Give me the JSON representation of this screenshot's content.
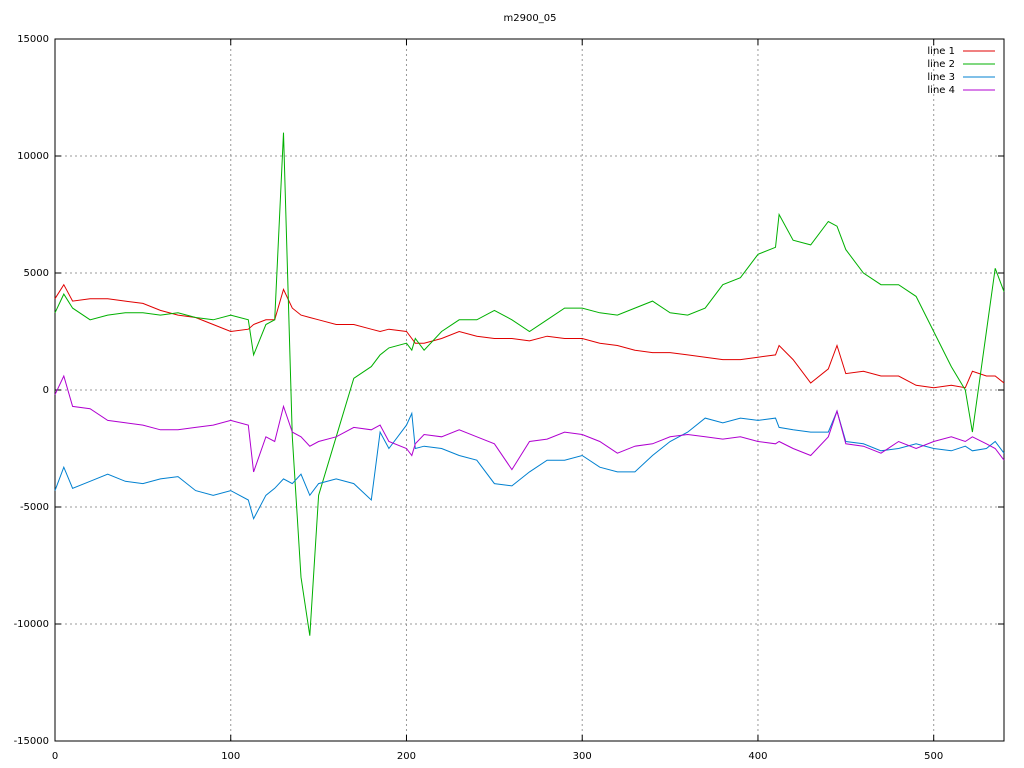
{
  "chart_data": {
    "type": "line",
    "title": "m2900_05",
    "x": [
      0,
      5,
      10,
      20,
      30,
      40,
      50,
      60,
      70,
      80,
      90,
      100,
      110,
      113,
      120,
      125,
      130,
      135,
      140,
      145,
      150,
      160,
      170,
      180,
      185,
      190,
      200,
      203,
      205,
      210,
      220,
      230,
      240,
      250,
      260,
      270,
      280,
      290,
      300,
      310,
      320,
      330,
      340,
      350,
      360,
      370,
      380,
      390,
      400,
      410,
      412,
      420,
      430,
      440,
      445,
      450,
      460,
      470,
      480,
      490,
      500,
      510,
      518,
      522,
      530,
      535,
      540
    ],
    "series": [
      {
        "name": "line 1",
        "color": "#e00000",
        "values": [
          3900,
          4500,
          3800,
          3900,
          3900,
          3800,
          3700,
          3400,
          3200,
          3100,
          2800,
          2500,
          2600,
          2800,
          3000,
          3000,
          4300,
          3500,
          3200,
          3100,
          3000,
          2800,
          2800,
          2600,
          2500,
          2600,
          2500,
          2200,
          2000,
          2000,
          2200,
          2500,
          2300,
          2200,
          2200,
          2100,
          2300,
          2200,
          2200,
          2000,
          1900,
          1700,
          1600,
          1600,
          1500,
          1400,
          1300,
          1300,
          1400,
          1500,
          1900,
          1300,
          300,
          900,
          1900,
          700,
          800,
          600,
          600,
          200,
          100,
          200,
          100,
          800,
          600,
          600,
          300
        ]
      },
      {
        "name": "line 2",
        "color": "#00b000",
        "values": [
          3300,
          4100,
          3500,
          3000,
          3200,
          3300,
          3300,
          3200,
          3300,
          3100,
          3000,
          3200,
          3000,
          1500,
          2800,
          3000,
          11000,
          -2000,
          -8000,
          -10500,
          -4500,
          -2000,
          500,
          1000,
          1500,
          1800,
          2000,
          1700,
          2200,
          1700,
          2500,
          3000,
          3000,
          3400,
          3000,
          2500,
          3000,
          3500,
          3500,
          3300,
          3200,
          3500,
          3800,
          3300,
          3200,
          3500,
          4500,
          4800,
          5800,
          6100,
          7500,
          6400,
          6200,
          7200,
          7000,
          6000,
          5000,
          4500,
          4500,
          4000,
          2500,
          1000,
          0,
          -1800,
          2500,
          5200,
          4200
        ]
      },
      {
        "name": "line 3",
        "color": "#0080d0",
        "values": [
          -4300,
          -3300,
          -4200,
          -3900,
          -3600,
          -3900,
          -4000,
          -3800,
          -3700,
          -4300,
          -4500,
          -4300,
          -4700,
          -5500,
          -4500,
          -4200,
          -3800,
          -4000,
          -3600,
          -4500,
          -4000,
          -3800,
          -4000,
          -4700,
          -1800,
          -2500,
          -1500,
          -1000,
          -2500,
          -2400,
          -2500,
          -2800,
          -3000,
          -4000,
          -4100,
          -3500,
          -3000,
          -3000,
          -2800,
          -3300,
          -3500,
          -3500,
          -2800,
          -2200,
          -1800,
          -1200,
          -1400,
          -1200,
          -1300,
          -1200,
          -1600,
          -1700,
          -1800,
          -1800,
          -900,
          -2200,
          -2300,
          -2600,
          -2500,
          -2300,
          -2500,
          -2600,
          -2400,
          -2600,
          -2500,
          -2200,
          -2700
        ]
      },
      {
        "name": "line 4",
        "color": "#b000d0",
        "values": [
          -200,
          600,
          -700,
          -800,
          -1300,
          -1400,
          -1500,
          -1700,
          -1700,
          -1600,
          -1500,
          -1300,
          -1500,
          -3500,
          -2000,
          -2200,
          -700,
          -1800,
          -2000,
          -2400,
          -2200,
          -2000,
          -1600,
          -1700,
          -1500,
          -2200,
          -2500,
          -2800,
          -2300,
          -1900,
          -2000,
          -1700,
          -2000,
          -2300,
          -3400,
          -2200,
          -2100,
          -1800,
          -1900,
          -2200,
          -2700,
          -2400,
          -2300,
          -2000,
          -1900,
          -2000,
          -2100,
          -2000,
          -2200,
          -2300,
          -2200,
          -2500,
          -2800,
          -2000,
          -900,
          -2300,
          -2400,
          -2700,
          -2200,
          -2500,
          -2200,
          -2000,
          -2200,
          -2000,
          -2300,
          -2500,
          -3000
        ]
      }
    ],
    "xlim": [
      0,
      540
    ],
    "xticks": [
      0,
      100,
      200,
      300,
      400,
      500
    ],
    "ylim": [
      -15000,
      15000
    ],
    "yticks": [
      -15000,
      -10000,
      -5000,
      0,
      5000,
      10000,
      15000
    ],
    "grid": true,
    "legend": "top-right"
  }
}
